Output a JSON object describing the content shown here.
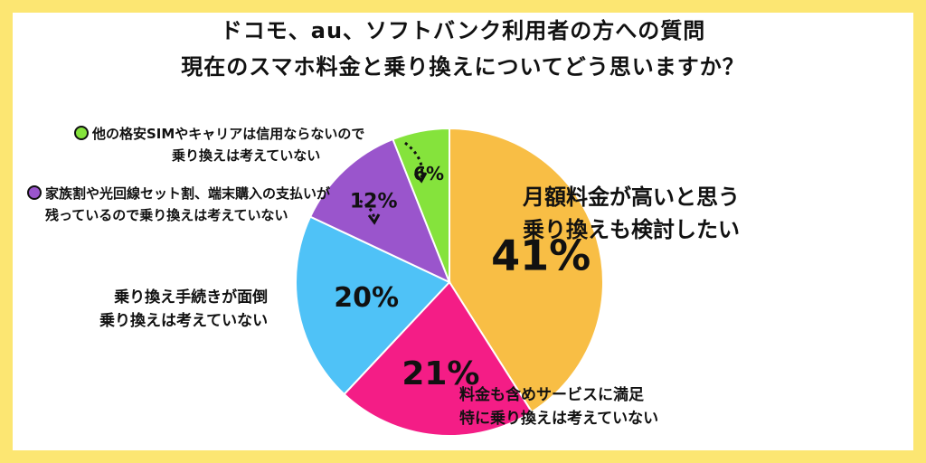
{
  "title_line1": "ドコモ、au、ソフトバンク利用者の方への質問",
  "title_line2": "現在のスマホ料金と乗り換えについてどう思いますか？",
  "chart_data": {
    "type": "pie",
    "start_angle_deg": 0,
    "direction": "clockwise",
    "slices": [
      {
        "label_line1": "月額料金が高いと思う",
        "label_line2": "乗り換えも検討したい",
        "value": 41,
        "pct_label": "41%",
        "color": "#f8be45"
      },
      {
        "label_line1": "料金も含めサービスに満足",
        "label_line2": "特に乗り換えは考えていない",
        "value": 21,
        "pct_label": "21%",
        "color": "#f41d86"
      },
      {
        "label_line1": "乗り換え手続きが面倒",
        "label_line2": "乗り換えは考えていない",
        "value": 20,
        "pct_label": "20%",
        "color": "#4fc2f7"
      },
      {
        "label_line1": "家族割や光回線セット割、端末購入の支払いが",
        "label_line2": "残っているので乗り換えは考えていない",
        "value": 12,
        "pct_label": "12%",
        "color": "#9a55cc"
      },
      {
        "label_line1": "他の格安SIMやキャリアは信用ならないので",
        "label_line2": "乗り換えは考えていない",
        "value": 6,
        "pct_label": "6%",
        "color": "#85e33c"
      }
    ]
  },
  "colors": {
    "frame": "#fce672",
    "background": "#ffffff"
  }
}
